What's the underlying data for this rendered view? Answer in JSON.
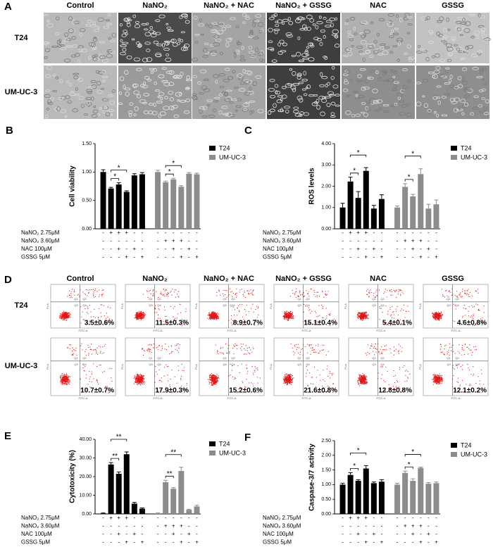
{
  "panel_labels": [
    "A",
    "B",
    "C",
    "D",
    "E",
    "F"
  ],
  "panel_a": {
    "columns": [
      "Control",
      "NaNO₂",
      "NaNO₂ + NAC",
      "NaNO₂ + GSSG",
      "NAC",
      "GSSG"
    ],
    "rows": [
      "T24",
      "UM-UC-3"
    ]
  },
  "panel_d": {
    "columns": [
      "Control",
      "NaNO₂",
      "NaNO₂ + NAC",
      "NaNO₂ + GSSG",
      "NAC",
      "GSSG"
    ],
    "rows": [
      "T24",
      "UM-UC-3"
    ],
    "x_axis_label": "FITC-A",
    "y_axis_label": "PI-A",
    "quadrants": [
      "Q1",
      "Q2",
      "Q3",
      "Q4"
    ],
    "percentages": [
      [
        "3.5±0.6%",
        "11.5±0.3%",
        "8.9±0.7%",
        "15.1±0.4%",
        "5.4±0.1%",
        "4.6±0.8%"
      ],
      [
        "10.7±0.7%",
        "17.9±0.3%",
        "15.2±0.6%",
        "21.6±0.8%",
        "12.8±0.8%",
        "12.1±0.2%"
      ]
    ]
  },
  "treatment_table": {
    "rows": [
      {
        "label": "NaNO₂ 2.75μM",
        "signs": [
          "-",
          "+",
          "+",
          "+",
          "-",
          "-",
          "-",
          "-",
          "-",
          "-",
          "-",
          "-"
        ]
      },
      {
        "label": "NaNO₂ 3.60μM",
        "signs": [
          "-",
          "-",
          "-",
          "-",
          "-",
          "-",
          "-",
          "+",
          "+",
          "+",
          "-",
          "-"
        ]
      },
      {
        "label": "NAC 100μM",
        "signs": [
          "-",
          "-",
          "+",
          "-",
          "+",
          "-",
          "-",
          "-",
          "+",
          "-",
          "+",
          "-"
        ]
      },
      {
        "label": "GSSG 5μM",
        "signs": [
          "-",
          "-",
          "-",
          "+",
          "-",
          "+",
          "-",
          "-",
          "-",
          "+",
          "-",
          "+"
        ]
      }
    ]
  },
  "chart_data": [
    {
      "type": "bar",
      "y_label": "Cell viability",
      "ylim": [
        0,
        1.5
      ],
      "yticks": [
        {
          "value": 0,
          "label": "0.00"
        },
        {
          "value": 0.5,
          "label": "0.50"
        },
        {
          "value": 1,
          "label": "1.00"
        },
        {
          "value": 1.5,
          "label": "1.50"
        }
      ],
      "series": [
        {
          "name": "T24",
          "color": "#000000",
          "values": [
            1.0,
            0.71,
            0.78,
            0.65,
            0.94,
            0.96
          ],
          "errors": [
            0.04,
            0.02,
            0.03,
            0.02,
            0.03,
            0.03
          ]
        },
        {
          "name": "UM-UC-3",
          "color": "#8c8c8c",
          "values": [
            1.0,
            0.82,
            0.87,
            0.74,
            0.97,
            0.96
          ],
          "errors": [
            0.03,
            0.02,
            0.02,
            0.02,
            0.02,
            0.02
          ]
        }
      ],
      "brackets": [
        {
          "series": 0,
          "from": 1,
          "to": 3,
          "label": "*"
        },
        {
          "series": 0,
          "from": 1,
          "to": 2,
          "label": "*"
        },
        {
          "series": 1,
          "from": 1,
          "to": 3,
          "label": "*"
        },
        {
          "series": 1,
          "from": 1,
          "to": 2,
          "label": "*"
        }
      ]
    },
    {
      "type": "bar",
      "y_label": "ROS levels",
      "ylim": [
        0,
        4
      ],
      "yticks": [
        {
          "value": 0,
          "label": "0.00"
        },
        {
          "value": 1,
          "label": "1.00"
        },
        {
          "value": 2,
          "label": "2.00"
        },
        {
          "value": 3,
          "label": "3.00"
        },
        {
          "value": 4,
          "label": "4.00"
        }
      ],
      "series": [
        {
          "name": "T24",
          "color": "#000000",
          "values": [
            1.0,
            2.22,
            1.45,
            2.72,
            0.95,
            1.4
          ],
          "errors": [
            0.2,
            0.2,
            0.3,
            0.15,
            0.15,
            0.2
          ]
        },
        {
          "name": "UM-UC-3",
          "color": "#8c8c8c",
          "values": [
            1.0,
            1.97,
            1.52,
            2.57,
            0.95,
            1.15
          ],
          "errors": [
            0.07,
            0.15,
            0.1,
            0.25,
            0.2,
            0.2
          ]
        }
      ],
      "brackets": [
        {
          "series": 0,
          "from": 1,
          "to": 3,
          "label": "*"
        },
        {
          "series": 0,
          "from": 1,
          "to": 2,
          "label": "*"
        },
        {
          "series": 1,
          "from": 1,
          "to": 3,
          "label": "*"
        },
        {
          "series": 1,
          "from": 1,
          "to": 2,
          "label": "*"
        }
      ]
    },
    {
      "type": "bar",
      "y_label": "Cytotoxicity (%)",
      "ylim": [
        0,
        40
      ],
      "yticks": [
        {
          "value": 0,
          "label": "0.00"
        },
        {
          "value": 10,
          "label": "10.00"
        },
        {
          "value": 20,
          "label": "20.00"
        },
        {
          "value": 30,
          "label": "30.00"
        },
        {
          "value": 40,
          "label": "40.00"
        }
      ],
      "series": [
        {
          "name": "T24",
          "color": "#000000",
          "values": [
            0.3,
            26.5,
            21.5,
            32,
            5.5,
            2.8
          ],
          "errors": [
            0.2,
            1.0,
            1.0,
            1.2,
            0.7,
            0.4
          ]
        },
        {
          "name": "UM-UC-3",
          "color": "#8c8c8c",
          "values": [
            0.3,
            17,
            13.5,
            23,
            2.2,
            4
          ],
          "errors": [
            0.2,
            1.0,
            0.6,
            2.0,
            0.3,
            0.6
          ]
        }
      ],
      "brackets": [
        {
          "series": 0,
          "from": 1,
          "to": 3,
          "label": "**"
        },
        {
          "series": 0,
          "from": 1,
          "to": 2,
          "label": "**"
        },
        {
          "series": 1,
          "from": 1,
          "to": 3,
          "label": "**"
        },
        {
          "series": 1,
          "from": 1,
          "to": 2,
          "label": "**"
        }
      ]
    },
    {
      "type": "bar",
      "y_label": "Caspase-3/7 activity",
      "ylim": [
        0,
        2.5
      ],
      "yticks": [
        {
          "value": 0,
          "label": "0.00"
        },
        {
          "value": 0.5,
          "label": "0.50"
        },
        {
          "value": 1,
          "label": "1.00"
        },
        {
          "value": 1.5,
          "label": "1.50"
        },
        {
          "value": 2,
          "label": "2.00"
        },
        {
          "value": 2.5,
          "label": "2.50"
        }
      ],
      "series": [
        {
          "name": "T24",
          "color": "#000000",
          "values": [
            1.0,
            1.33,
            1.13,
            1.55,
            1.05,
            1.1
          ],
          "errors": [
            0.05,
            0.08,
            0.04,
            0.1,
            0.04,
            0.07
          ]
        },
        {
          "name": "UM-UC-3",
          "color": "#8c8c8c",
          "values": [
            1.0,
            1.4,
            1.13,
            1.57,
            1.03,
            1.05
          ],
          "errors": [
            0.05,
            0.06,
            0.07,
            0.03,
            0.04,
            0.04
          ]
        }
      ],
      "brackets": [
        {
          "series": 0,
          "from": 1,
          "to": 3,
          "label": "*"
        },
        {
          "series": 0,
          "from": 1,
          "to": 2,
          "label": "*"
        },
        {
          "series": 1,
          "from": 1,
          "to": 3,
          "label": "*"
        },
        {
          "series": 1,
          "from": 1,
          "to": 2,
          "label": "*"
        }
      ]
    }
  ]
}
